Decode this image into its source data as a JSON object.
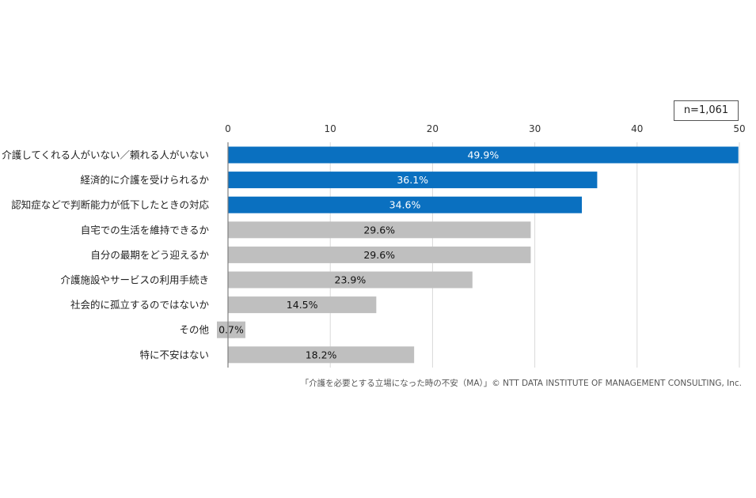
{
  "chart_data": {
    "type": "bar",
    "orientation": "horizontal",
    "sample_label": "n=1,061",
    "categories": [
      "介護してくれる人がいない／頼れる人がいない",
      "経済的に介護を受けられるか",
      "認知症などで判断能力が低下したときの対応",
      "自宅での生活を維持できるか",
      "自分の最期をどう迎えるか",
      "介護施設やサービスの利用手続き",
      "社会的に孤立するのではないか",
      "その他",
      "特に不安はない"
    ],
    "values": [
      49.9,
      36.1,
      34.6,
      29.6,
      29.6,
      23.9,
      14.5,
      0.7,
      18.2
    ],
    "value_labels": [
      "49.9%",
      "36.1%",
      "34.6%",
      "29.6%",
      "29.6%",
      "23.9%",
      "14.5%",
      "0.7%",
      "18.2%"
    ],
    "highlighted": [
      true,
      true,
      true,
      false,
      false,
      false,
      false,
      false,
      false
    ],
    "xlim": [
      0,
      50
    ],
    "xticks": [
      0,
      10,
      20,
      30,
      40,
      50
    ],
    "xtick_labels": [
      "0",
      "10",
      "20",
      "30",
      "40",
      "50"
    ],
    "grid": true,
    "colors": {
      "highlight": "#0a70c0",
      "normal": "#bfbfbf",
      "highlight_text": "#ffffff",
      "normal_text": "#111111"
    }
  },
  "source_note": "「介護を必要とする立場になった時の不安（MA）」© NTT DATA INSTITUTE OF MANAGEMENT CONSULTING, Inc."
}
